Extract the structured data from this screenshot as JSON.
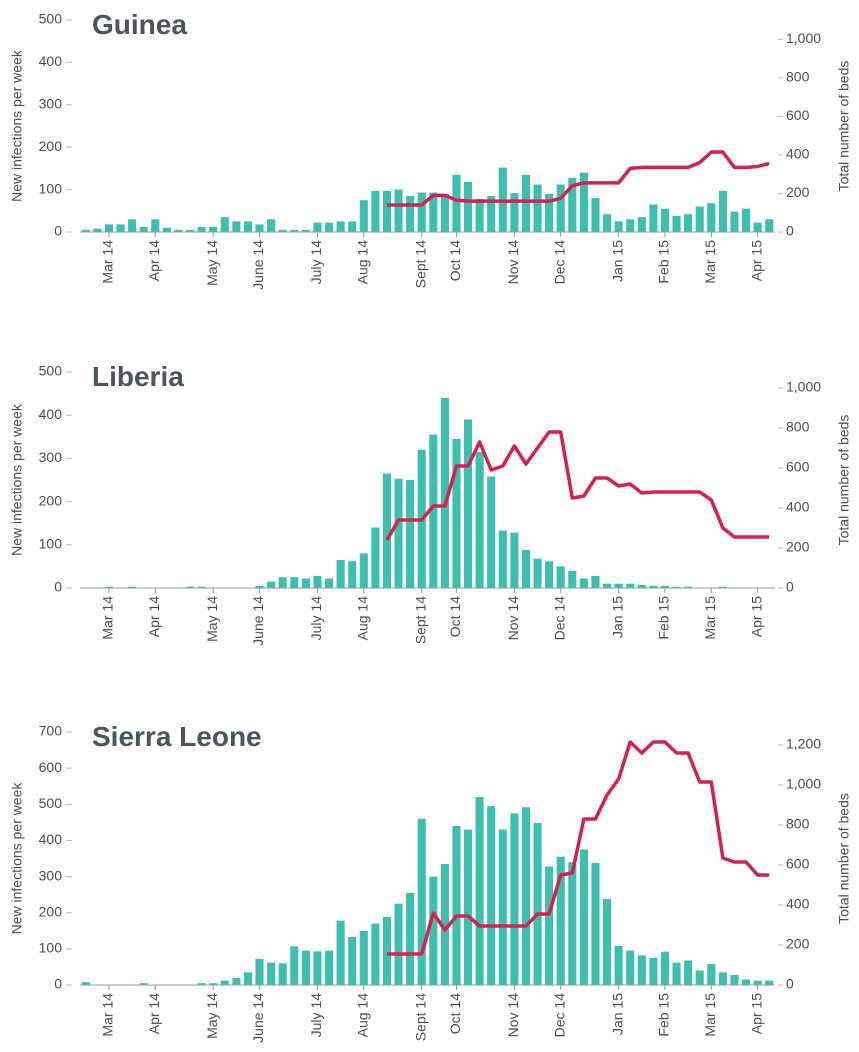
{
  "chart_data": [
    {
      "type": "bar",
      "title": "Guinea",
      "ylabel": "New infections per week",
      "y2label": "Total number of beds",
      "categories": [
        null,
        null,
        "Mar 14",
        null,
        null,
        null,
        "Apr 14",
        null,
        null,
        null,
        null,
        "May 14",
        null,
        null,
        null,
        "June 14",
        null,
        null,
        null,
        null,
        "July 14",
        null,
        null,
        null,
        "Aug 14",
        null,
        null,
        null,
        null,
        "Sept 14",
        null,
        null,
        "Oct 14",
        null,
        null,
        null,
        null,
        "Nov 14",
        null,
        null,
        null,
        "Dec 14",
        null,
        null,
        null,
        null,
        "Jan 15",
        null,
        null,
        null,
        "Feb 15",
        null,
        null,
        null,
        "Mar 15",
        null,
        null,
        null,
        "Apr 15",
        null
      ],
      "series": [
        {
          "color": "#3dbfb0",
          "values": [
            5,
            8,
            18,
            18,
            30,
            12,
            30,
            10,
            5,
            5,
            12,
            12,
            35,
            25,
            25,
            18,
            30,
            5,
            5,
            5,
            22,
            22,
            25,
            25,
            75,
            97,
            97,
            100,
            85,
            93,
            93,
            90,
            135,
            118,
            78,
            85,
            152,
            92,
            135,
            112,
            90,
            112,
            128,
            140,
            80,
            42,
            25,
            30,
            35,
            65,
            55,
            38,
            42,
            60,
            68,
            97,
            48,
            55,
            22,
            30
          ]
        },
        {
          "type": "line",
          "axis": "y2",
          "color": "#d6204f",
          "values": [
            null,
            null,
            null,
            null,
            null,
            null,
            null,
            null,
            null,
            null,
            null,
            null,
            null,
            null,
            null,
            null,
            null,
            null,
            null,
            null,
            null,
            null,
            null,
            null,
            null,
            null,
            140,
            140,
            140,
            140,
            190,
            190,
            165,
            160,
            160,
            160,
            160,
            160,
            160,
            160,
            160,
            175,
            240,
            255,
            255,
            255,
            255,
            330,
            335,
            335,
            335,
            335,
            335,
            360,
            415,
            415,
            335,
            335,
            340,
            355
          ]
        }
      ],
      "ylim": [
        0,
        500
      ],
      "yticks": [
        0,
        100,
        200,
        300,
        400,
        500
      ],
      "y2lim": [
        0,
        1100
      ],
      "y2ticks": [
        0,
        200,
        400,
        600,
        800,
        {
          "value": 1000,
          "label": "1,000"
        }
      ]
    },
    {
      "type": "bar",
      "title": "Liberia",
      "ylabel": "New infections per week",
      "y2label": "Total number of beds",
      "categories": [
        null,
        null,
        "Mar 14",
        null,
        null,
        null,
        "Apr 14",
        null,
        null,
        null,
        null,
        "May 14",
        null,
        null,
        null,
        "June 14",
        null,
        null,
        null,
        null,
        "July 14",
        null,
        null,
        null,
        "Aug 14",
        null,
        null,
        null,
        null,
        "Sept 14",
        null,
        null,
        "Oct 14",
        null,
        null,
        null,
        null,
        "Nov 14",
        null,
        null,
        null,
        "Dec 14",
        null,
        null,
        null,
        null,
        "Jan 15",
        null,
        null,
        null,
        "Feb 15",
        null,
        null,
        null,
        "Mar 15",
        null,
        null,
        null,
        "Apr 15",
        null
      ],
      "series": [
        {
          "color": "#3dbfb0",
          "values": [
            0,
            0,
            3,
            0,
            3,
            0,
            0,
            0,
            0,
            3,
            3,
            0,
            0,
            0,
            0,
            5,
            15,
            25,
            25,
            22,
            28,
            22,
            65,
            62,
            80,
            140,
            265,
            253,
            250,
            320,
            355,
            440,
            345,
            390,
            315,
            258,
            133,
            128,
            88,
            68,
            62,
            50,
            40,
            22,
            28,
            10,
            10,
            10,
            7,
            5,
            5,
            3,
            3,
            0,
            0,
            3,
            0,
            0,
            0,
            0
          ]
        },
        {
          "type": "line",
          "axis": "y2",
          "color": "#d6204f",
          "values": [
            null,
            null,
            null,
            null,
            null,
            null,
            null,
            null,
            null,
            null,
            null,
            null,
            null,
            null,
            null,
            null,
            null,
            null,
            null,
            null,
            null,
            null,
            null,
            null,
            null,
            null,
            240,
            340,
            340,
            340,
            410,
            410,
            610,
            610,
            730,
            590,
            610,
            710,
            620,
            700,
            780,
            780,
            450,
            460,
            550,
            550,
            510,
            520,
            475,
            480,
            480,
            480,
            480,
            480,
            440,
            300,
            255,
            255,
            255,
            255
          ]
        }
      ],
      "ylim": [
        0,
        500
      ],
      "yticks": [
        0,
        100,
        200,
        300,
        400,
        500
      ],
      "y2lim": [
        0,
        1080
      ],
      "y2ticks": [
        0,
        200,
        400,
        600,
        800,
        {
          "value": 1000,
          "label": "1,000"
        }
      ]
    },
    {
      "type": "bar",
      "title": "Sierra Leone",
      "ylabel": "New infections per week",
      "y2label": "Total number of beds",
      "categories": [
        null,
        null,
        "Mar 14",
        null,
        null,
        null,
        "Apr 14",
        null,
        null,
        null,
        null,
        "May 14",
        null,
        null,
        null,
        "June 14",
        null,
        null,
        null,
        null,
        "July 14",
        null,
        null,
        null,
        "Aug 14",
        null,
        null,
        null,
        null,
        "Sept 14",
        null,
        null,
        "Oct 14",
        null,
        null,
        null,
        null,
        "Nov 14",
        null,
        null,
        null,
        "Dec 14",
        null,
        null,
        null,
        null,
        "Jan 15",
        null,
        null,
        null,
        "Feb 15",
        null,
        null,
        null,
        "Mar 15",
        null,
        null,
        null,
        "Apr 15",
        null
      ],
      "series": [
        {
          "color": "#3dbfb0",
          "values": [
            8,
            0,
            0,
            0,
            0,
            5,
            0,
            0,
            0,
            0,
            5,
            5,
            12,
            20,
            35,
            72,
            62,
            60,
            107,
            95,
            93,
            95,
            178,
            133,
            150,
            170,
            188,
            225,
            255,
            460,
            300,
            335,
            440,
            430,
            520,
            495,
            430,
            475,
            492,
            448,
            328,
            355,
            340,
            375,
            338,
            238,
            108,
            95,
            82,
            75,
            92,
            62,
            68,
            40,
            58,
            35,
            28,
            15,
            12,
            12
          ]
        },
        {
          "type": "line",
          "axis": "y2",
          "color": "#d6204f",
          "values": [
            null,
            null,
            null,
            null,
            null,
            null,
            null,
            null,
            null,
            null,
            null,
            null,
            null,
            null,
            null,
            null,
            null,
            null,
            null,
            null,
            null,
            null,
            null,
            null,
            null,
            null,
            155,
            155,
            155,
            155,
            360,
            275,
            345,
            345,
            295,
            295,
            295,
            295,
            295,
            355,
            355,
            550,
            560,
            830,
            830,
            950,
            1030,
            1215,
            1160,
            1215,
            1215,
            1160,
            1160,
            1015,
            1015,
            635,
            615,
            615,
            550,
            550
          ]
        }
      ],
      "ylim": [
        0,
        700
      ],
      "yticks": [
        0,
        100,
        200,
        300,
        400,
        500,
        600,
        700
      ],
      "y2lim": [
        0,
        1265
      ],
      "y2ticks": [
        0,
        200,
        400,
        600,
        800,
        {
          "value": 1000,
          "label": "1,000"
        },
        {
          "value": 1200,
          "label": "1,200"
        }
      ]
    }
  ]
}
